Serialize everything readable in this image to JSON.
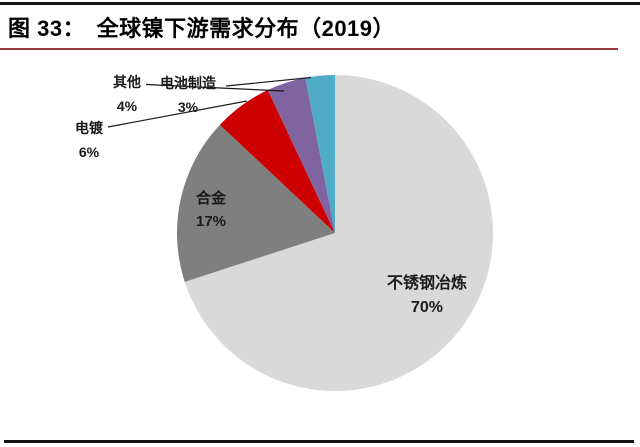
{
  "figure": {
    "title": "图 33：　全球镍下游需求分布（2019）"
  },
  "colors": {
    "top_rule": "#151515",
    "accent_rule": "#9C3941",
    "bottom_rule": "#151515",
    "leader_line": "#1a1a1a",
    "label_text": "#1a1a1a",
    "background": "#ffffff"
  },
  "chart_data": {
    "type": "pie",
    "title": "全球镍下游需求分布（2019）",
    "start_angle_deg": 0,
    "direction": "clockwise",
    "legend": "none",
    "slices": [
      {
        "name": "stainless-steel-smelting",
        "label": "不锈钢冶炼",
        "value": 70,
        "pct": "70%",
        "color": "#D9D9D9",
        "label_placement": "inside"
      },
      {
        "name": "alloy",
        "label": "合金",
        "value": 17,
        "pct": "17%",
        "color": "#7F7F7F",
        "label_placement": "inside"
      },
      {
        "name": "electroplating",
        "label": "电镀",
        "value": 6,
        "pct": "6%",
        "color": "#CC0000",
        "label_placement": "outside"
      },
      {
        "name": "other",
        "label": "其他",
        "value": 4,
        "pct": "4%",
        "color": "#8064A2",
        "label_placement": "outside"
      },
      {
        "name": "battery-manufacturing",
        "label": "电池制造",
        "value": 3,
        "pct": "3%",
        "color": "#4FABC6",
        "label_placement": "outside"
      }
    ]
  }
}
